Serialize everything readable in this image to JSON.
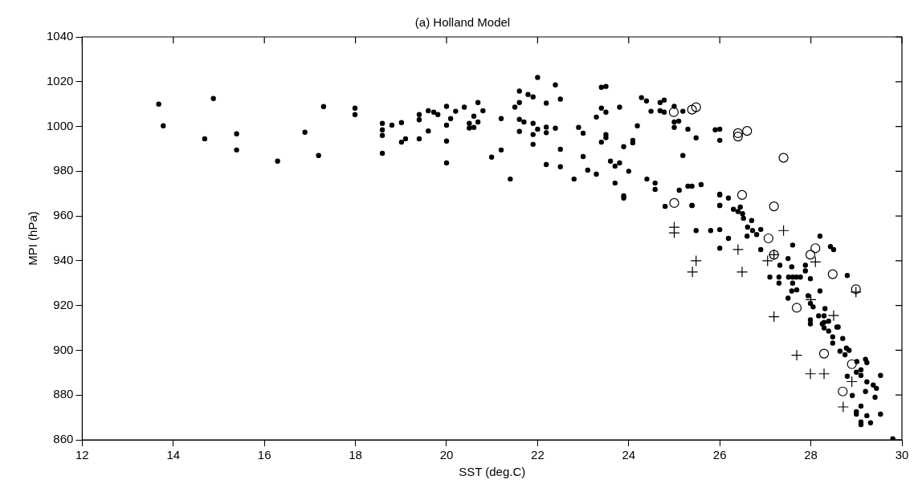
{
  "chart_data": {
    "type": "scatter",
    "title": "(a) Holland Model",
    "xlabel": "SST (deg.C)",
    "ylabel": "MPI (hPa)",
    "xlim": [
      12,
      30
    ],
    "xticks": [
      12,
      14,
      16,
      18,
      20,
      22,
      24,
      26,
      28,
      30
    ],
    "ylim": [
      860,
      1040
    ],
    "yticks": [
      860,
      880,
      900,
      920,
      940,
      960,
      980,
      1000,
      1020,
      1040
    ],
    "grid": false,
    "legend": false,
    "series": [
      {
        "color": "#000000",
        "marker": "circle",
        "x": [
          13.68,
          13.78,
          14.69,
          14.88,
          15.39,
          15.39,
          16.29,
          16.89,
          17.19,
          17.3,
          17.99,
          17.99,
          18.59,
          18.59,
          18.59,
          18.59,
          18.8,
          19.01,
          19.01,
          19.1,
          19.4,
          19.4,
          19.4,
          19.6,
          19.72,
          19.81,
          19.6,
          20.0,
          20.0,
          20.0,
          20.0,
          20.09,
          20.2,
          20.39,
          20.5,
          20.5,
          20.6,
          20.6,
          20.69,
          20.69,
          20.8,
          21.2,
          21.2,
          20.99,
          21.4,
          21.5,
          21.6,
          21.6,
          21.6,
          21.6,
          21.7,
          21.79,
          21.9,
          21.9,
          21.9,
          21.9,
          22.0,
          22.0,
          22.19,
          22.19,
          22.19,
          22.19,
          22.39,
          22.39,
          22.5,
          22.5,
          22.5,
          22.8,
          22.9,
          23.0,
          23.0,
          23.1,
          23.29,
          23.29,
          23.4,
          23.4,
          23.5,
          23.5,
          23.4,
          23.5,
          23.5,
          23.6,
          23.7,
          23.8,
          23.7,
          23.8,
          23.89,
          23.89,
          23.89,
          24.0,
          24.09,
          24.09,
          24.19,
          24.28,
          24.39,
          24.49,
          24.4,
          24.58,
          24.58,
          24.69,
          24.78,
          24.69,
          24.78,
          24.8,
          25.0,
          25.0,
          25.1,
          25.0,
          25.19,
          25.3,
          25.48,
          25.19,
          25.11,
          25.3,
          25.39,
          25.59,
          25.39,
          25.48,
          25.8,
          26.0,
          25.9,
          26.0,
          26.0,
          26.0,
          26.0,
          26.0,
          26.19,
          26.0,
          25.39,
          24.8,
          26.3,
          26.4,
          26.45,
          26.5,
          26.52,
          26.7,
          26.61,
          26.81,
          26.72,
          26.9,
          26.6,
          26.19,
          26.0,
          26.9,
          28.2,
          27.6,
          28.43,
          28.5,
          27.5,
          27.58,
          27.32,
          27.88,
          27.88,
          27.1,
          27.3,
          27.3,
          27.51,
          27.6,
          27.68,
          27.77,
          27.99,
          27.6,
          27.58,
          27.69,
          27.5,
          28.2,
          28.8,
          27.94,
          27.99,
          28.05,
          28.31,
          28.29,
          28.17,
          27.99,
          27.99,
          28.39,
          28.25,
          28.57,
          28.29,
          28.29,
          28.39,
          28.6,
          28.48,
          28.7,
          28.48,
          28.78,
          28.64,
          28.75,
          28.84,
          29.01,
          29.2,
          29.23,
          29.1,
          29.1,
          29.0,
          28.8,
          29.53,
          29.23,
          29.37,
          29.44,
          29.2,
          29.41,
          28.91,
          29.1,
          29.0,
          29.0,
          29.23,
          29.1,
          29.1,
          29.31,
          29.53,
          29.8
        ],
        "values": [
          1010,
          1000.3,
          994.5,
          1012.5,
          996.7,
          989.5,
          984.5,
          997.4,
          987,
          1008.9,
          1008.2,
          1005.3,
          1001.4,
          998.5,
          996,
          988,
          1000.6,
          1001.7,
          993,
          994.5,
          1005.3,
          1003,
          994.5,
          1007,
          1006.4,
          1005.3,
          998,
          1009,
          1000.6,
          993.5,
          983.7,
          1003.5,
          1006.8,
          1008.6,
          1001.4,
          999.3,
          999.6,
          1004.6,
          1002,
          1010.7,
          1007,
          1003.5,
          989.5,
          986.3,
          976.5,
          1008.6,
          1015.8,
          1010.7,
          1003.2,
          997.8,
          1002,
          1014.3,
          1013.2,
          1001.4,
          996.4,
          992,
          998.8,
          1021.9,
          1010.4,
          999.7,
          997.2,
          983,
          1018.6,
          999.2,
          1012.2,
          989.8,
          982,
          976.5,
          999.6,
          997,
          986.6,
          980.5,
          978.7,
          1004.2,
          1008.2,
          1017.5,
          1017.9,
          1006.4,
          993,
          996.4,
          995,
          984.5,
          982.3,
          983.7,
          974.7,
          1008.6,
          991,
          969,
          968,
          980,
          993.8,
          992.7,
          1000.3,
          1012.9,
          1011.4,
          1006.8,
          976.5,
          974.7,
          971.9,
          1010.7,
          1011.8,
          1007,
          1006.4,
          964.3,
          1009,
          1002,
          1002.4,
          999.6,
          1006.8,
          998.8,
          994.9,
          987,
          971.5,
          973.3,
          973.3,
          974,
          964.7,
          953.5,
          953.5,
          953.9,
          998.5,
          998.8,
          993.8,
          969.7,
          964.7,
          969.4,
          968,
          964.7,
          964.7,
          964.3,
          963,
          962,
          964,
          961,
          959,
          958,
          955,
          951.7,
          953.5,
          954,
          951,
          950,
          945.6,
          945,
          951,
          947,
          946.3,
          945,
          941,
          937.3,
          938,
          938,
          935.5,
          932.7,
          932.7,
          930,
          932.7,
          932.7,
          932.7,
          932.7,
          932,
          930,
          926.5,
          927,
          923.3,
          926.5,
          933.4,
          924.4,
          921,
          919.4,
          918.6,
          915.4,
          915.4,
          913.6,
          911.8,
          913,
          911.8,
          910.4,
          912.5,
          910,
          908.6,
          910.4,
          906,
          905.3,
          903.2,
          901,
          899.6,
          898,
          900,
          895,
          896,
          894.5,
          891.3,
          888.8,
          890.2,
          888.4,
          888.8,
          885.9,
          884.5,
          883,
          881.6,
          879,
          879.8,
          875.1,
          872.6,
          871.5,
          870.8,
          868,
          866.8,
          867.6,
          871.5,
          860.5
        ]
      },
      {
        "color": "#000000",
        "marker": "circle",
        "x": [
          24.99,
          25.39,
          25.48,
          26.4,
          26.4,
          26.6,
          27.4,
          25.0,
          26.49,
          27.19,
          27.07,
          27.19,
          28.1,
          27.99,
          28.48,
          28.99,
          27.69,
          28.29,
          28.9,
          28.7
        ],
        "values": [
          1006.4,
          1007.5,
          1008.6,
          997,
          995.5,
          998,
          986,
          965.8,
          969.4,
          964.3,
          950,
          942.7,
          945.6,
          942.7,
          934,
          927.3,
          919,
          898.5,
          893.8,
          881.6
        ]
      },
      {
        "color": "#000000",
        "marker": "cross",
        "x": [
          25.0,
          25.0,
          27.4,
          26.4,
          25.48,
          25.4,
          26.49,
          27.05,
          27.19,
          28.1,
          27.19,
          28.99,
          28.5,
          28.0,
          27.69,
          27.99,
          28.29,
          28.71,
          28.9
        ],
        "values": [
          955,
          952.5,
          953.5,
          945,
          940,
          935,
          935,
          940,
          942.7,
          939.5,
          915,
          926,
          915.5,
          922.6,
          897.8,
          889.5,
          889.5,
          874.7,
          886
        ]
      }
    ]
  }
}
